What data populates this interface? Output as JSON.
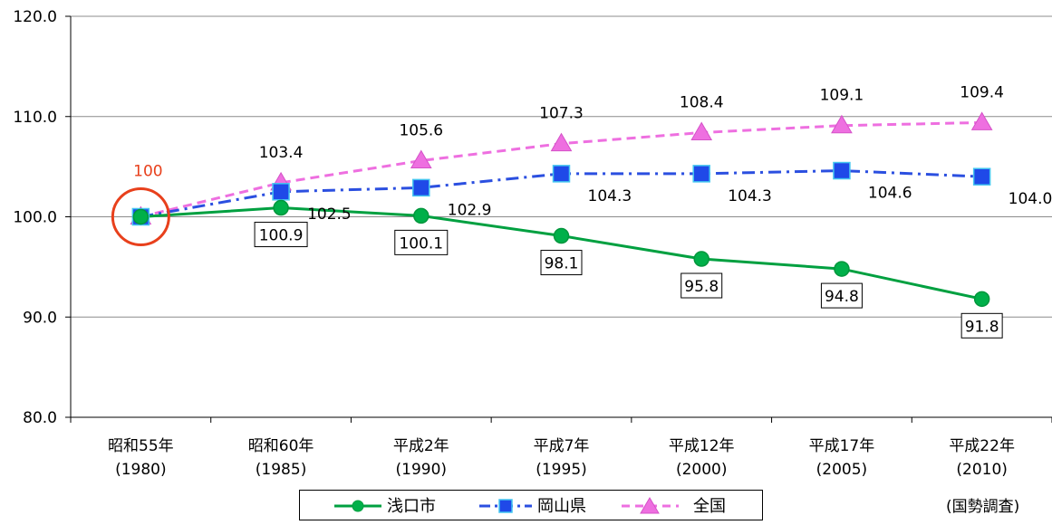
{
  "chart_data": {
    "type": "line",
    "categories": [
      [
        "昭和55年",
        "(1980)"
      ],
      [
        "昭和60年",
        "(1985)"
      ],
      [
        "平成2年",
        "(1990)"
      ],
      [
        "平成7年",
        "(1995)"
      ],
      [
        "平成12年",
        "(2000)"
      ],
      [
        "平成17年",
        "(2005)"
      ],
      [
        "平成22年",
        "(2010)"
      ]
    ],
    "ylim": [
      80,
      120
    ],
    "yticks": [
      "80.0",
      "90.0",
      "100.0",
      "110.0",
      "120.0"
    ],
    "grid": true,
    "series": [
      {
        "name": "浅口市",
        "color": "#00a040",
        "line_style": "solid",
        "marker": "circle",
        "values": [
          100,
          100.9,
          100.1,
          98.1,
          95.8,
          94.8,
          91.8
        ],
        "labels": [
          "",
          "100.9",
          "100.1",
          "98.1",
          "95.8",
          "94.8",
          "91.8"
        ],
        "label_style": "boxed"
      },
      {
        "name": "岡山県",
        "color": "#2b4fe0",
        "marker_fill": "#1f49e8",
        "line_style": "dash-dot",
        "marker": "square",
        "values": [
          100,
          102.5,
          102.9,
          104.3,
          104.3,
          104.6,
          104.0
        ],
        "labels": [
          "",
          "102.5",
          "102.9",
          "104.3",
          "104.3",
          "104.6",
          "104.0"
        ]
      },
      {
        "name": "全国",
        "color": "#ee6fe0",
        "line_style": "dashed",
        "marker": "triangle",
        "values": [
          100,
          103.4,
          105.6,
          107.3,
          108.4,
          109.1,
          109.4
        ],
        "labels": [
          "",
          "103.4",
          "105.6",
          "107.3",
          "108.4",
          "109.1",
          "109.4"
        ]
      }
    ],
    "base_annotation": {
      "text": "100",
      "color": "#e8401c",
      "circle_color": "#e8401c"
    },
    "source": "(国勢調査)"
  }
}
